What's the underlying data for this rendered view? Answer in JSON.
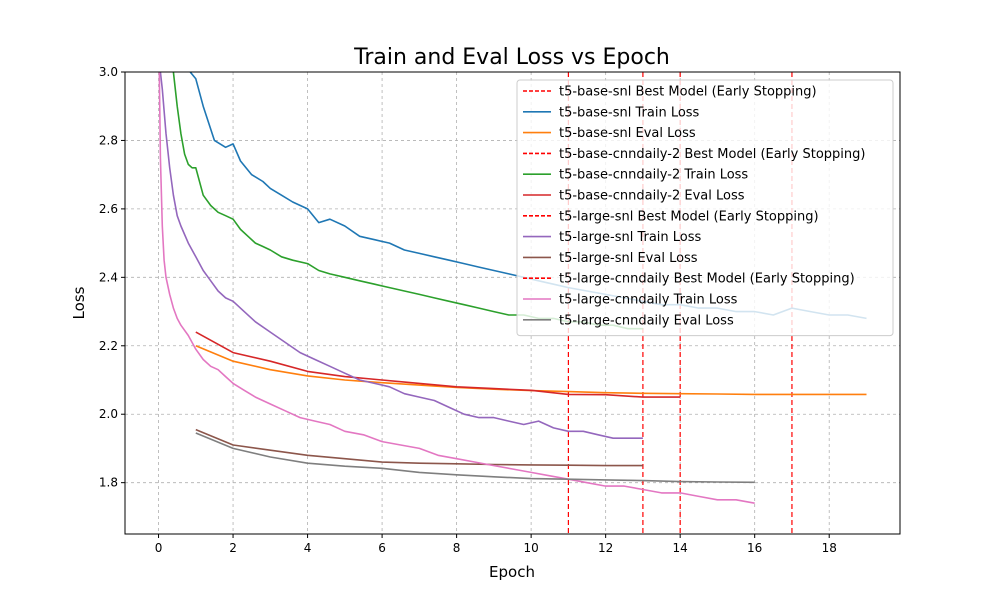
{
  "chart_data": {
    "type": "line",
    "title": "Train and Eval Loss vs Epoch",
    "xlabel": "Epoch",
    "ylabel": "Loss",
    "xlim": [
      -0.9,
      19.9
    ],
    "ylim": [
      1.65,
      3.0
    ],
    "xticks": [
      0,
      2,
      4,
      6,
      8,
      10,
      12,
      14,
      16,
      18
    ],
    "yticks": [
      1.8,
      2.0,
      2.2,
      2.4,
      2.6,
      2.8,
      3.0
    ],
    "grid": true,
    "legend_position": "upper right",
    "series": [
      {
        "name": "t5-base-snl Best Model (Early Stopping)",
        "kind": "vline",
        "color": "#ff0000",
        "x": 17
      },
      {
        "name": "t5-base-snl Train Loss",
        "kind": "line",
        "color": "#1f77b4",
        "x": [
          0.85,
          1,
          1.2,
          1.5,
          1.8,
          2.0,
          2.2,
          2.5,
          2.8,
          3.0,
          3.3,
          3.6,
          4.0,
          4.3,
          4.6,
          5.0,
          5.4,
          5.8,
          6.2,
          6.6,
          7.0,
          7.4,
          7.8,
          8.2,
          8.6,
          9.0,
          9.4,
          9.8,
          10.2,
          10.6,
          11.0,
          11.5,
          12.0,
          12.5,
          13.0,
          13.5,
          14.0,
          14.5,
          15.0,
          15.5,
          16.0,
          16.5,
          17.0,
          17.5,
          18.0,
          18.5,
          19.0
        ],
        "y": [
          3.02,
          2.98,
          2.9,
          2.8,
          2.78,
          2.79,
          2.74,
          2.7,
          2.68,
          2.66,
          2.64,
          2.62,
          2.6,
          2.56,
          2.57,
          2.55,
          2.52,
          2.51,
          2.5,
          2.48,
          2.47,
          2.46,
          2.45,
          2.44,
          2.43,
          2.42,
          2.41,
          2.4,
          2.39,
          2.38,
          2.37,
          2.36,
          2.35,
          2.34,
          2.33,
          2.32,
          2.32,
          2.31,
          2.31,
          2.3,
          2.3,
          2.29,
          2.31,
          2.3,
          2.29,
          2.29,
          2.28
        ]
      },
      {
        "name": "t5-base-snl Eval Loss",
        "kind": "line",
        "color": "#ff7f0e",
        "x": [
          1,
          2,
          3,
          4,
          5,
          6,
          7,
          8,
          9,
          10,
          11,
          12,
          13,
          14,
          15,
          16,
          17,
          18,
          19
        ],
        "y": [
          2.2,
          2.155,
          2.13,
          2.112,
          2.1,
          2.092,
          2.085,
          2.078,
          2.073,
          2.069,
          2.066,
          2.063,
          2.061,
          2.06,
          2.059,
          2.058,
          2.058,
          2.058,
          2.058
        ]
      },
      {
        "name": "t5-base-cnndaily-2 Best Model (Early Stopping)",
        "kind": "vline",
        "color": "#ff0000",
        "x": 13
      },
      {
        "name": "t5-base-cnndaily-2 Train Loss",
        "kind": "line",
        "color": "#2ca02c",
        "x": [
          0.4,
          0.5,
          0.6,
          0.7,
          0.8,
          0.9,
          1.0,
          1.2,
          1.4,
          1.6,
          1.8,
          2.0,
          2.2,
          2.4,
          2.6,
          2.8,
          3.0,
          3.3,
          3.6,
          4.0,
          4.3,
          4.6,
          5.0,
          5.4,
          5.8,
          6.2,
          6.6,
          7.0,
          7.4,
          7.8,
          8.2,
          8.6,
          9.0,
          9.4,
          9.8,
          10.2,
          10.6,
          11.0,
          11.4,
          11.8,
          12.2,
          12.6,
          13.0
        ],
        "y": [
          3.0,
          2.9,
          2.82,
          2.76,
          2.73,
          2.72,
          2.72,
          2.64,
          2.61,
          2.59,
          2.58,
          2.57,
          2.54,
          2.52,
          2.5,
          2.49,
          2.48,
          2.46,
          2.45,
          2.44,
          2.42,
          2.41,
          2.4,
          2.39,
          2.38,
          2.37,
          2.36,
          2.35,
          2.34,
          2.33,
          2.32,
          2.31,
          2.3,
          2.29,
          2.29,
          2.28,
          2.28,
          2.27,
          2.27,
          2.26,
          2.26,
          2.25,
          2.25
        ]
      },
      {
        "name": "t5-base-cnndaily-2 Eval Loss",
        "kind": "line",
        "color": "#d62728",
        "x": [
          1,
          2,
          3,
          4,
          5,
          6,
          7,
          8,
          9,
          10,
          11,
          12,
          13,
          14
        ],
        "y": [
          2.24,
          2.18,
          2.155,
          2.125,
          2.11,
          2.1,
          2.09,
          2.08,
          2.075,
          2.07,
          2.058,
          2.057,
          2.05,
          2.05
        ]
      },
      {
        "name": "t5-large-snl Best Model (Early Stopping)",
        "kind": "vline",
        "color": "#ff0000",
        "x": 14
      },
      {
        "name": "t5-large-snl Train Loss",
        "kind": "line",
        "color": "#9467bd",
        "x": [
          0.05,
          0.1,
          0.2,
          0.3,
          0.4,
          0.5,
          0.6,
          0.8,
          1.0,
          1.2,
          1.4,
          1.6,
          1.8,
          2.0,
          2.3,
          2.6,
          3.0,
          3.4,
          3.8,
          4.2,
          4.6,
          5.0,
          5.4,
          5.8,
          6.2,
          6.6,
          7.0,
          7.4,
          7.8,
          8.2,
          8.6,
          9.0,
          9.4,
          9.8,
          10.2,
          10.6,
          11.0,
          11.4,
          11.8,
          12.2,
          12.6,
          13.0
        ],
        "y": [
          3.0,
          2.95,
          2.82,
          2.72,
          2.64,
          2.58,
          2.55,
          2.5,
          2.46,
          2.42,
          2.39,
          2.36,
          2.34,
          2.33,
          2.3,
          2.27,
          2.24,
          2.21,
          2.18,
          2.16,
          2.14,
          2.12,
          2.1,
          2.09,
          2.08,
          2.06,
          2.05,
          2.04,
          2.02,
          2.0,
          1.99,
          1.99,
          1.98,
          1.97,
          1.98,
          1.96,
          1.95,
          1.95,
          1.94,
          1.93,
          1.93,
          1.93
        ]
      },
      {
        "name": "t5-large-snl Eval Loss",
        "kind": "line",
        "color": "#8c564b",
        "x": [
          1,
          2,
          3,
          4,
          5,
          6,
          7,
          8,
          9,
          10,
          11,
          12,
          13
        ],
        "y": [
          1.955,
          1.91,
          1.895,
          1.88,
          1.87,
          1.86,
          1.857,
          1.855,
          1.853,
          1.852,
          1.851,
          1.85,
          1.85
        ]
      },
      {
        "name": "t5-large-cnndaily Best Model (Early Stopping)",
        "kind": "vline",
        "color": "#ff0000",
        "x": 11
      },
      {
        "name": "t5-large-cnndaily Train Loss",
        "kind": "line",
        "color": "#e377c2",
        "x": [
          0.02,
          0.05,
          0.1,
          0.15,
          0.2,
          0.3,
          0.4,
          0.5,
          0.6,
          0.8,
          1.0,
          1.2,
          1.4,
          1.6,
          1.8,
          2.0,
          2.3,
          2.6,
          3.0,
          3.4,
          3.8,
          4.2,
          4.6,
          5.0,
          5.5,
          6.0,
          6.5,
          7.0,
          7.5,
          8.0,
          8.5,
          9.0,
          9.5,
          10.0,
          10.5,
          11.0,
          11.5,
          12.0,
          12.5,
          13.0,
          13.5,
          14.0,
          14.5,
          15.0,
          15.5,
          16.0
        ],
        "y": [
          3.0,
          2.75,
          2.55,
          2.45,
          2.4,
          2.35,
          2.31,
          2.28,
          2.26,
          2.23,
          2.19,
          2.16,
          2.14,
          2.13,
          2.11,
          2.09,
          2.07,
          2.05,
          2.03,
          2.01,
          1.99,
          1.98,
          1.97,
          1.95,
          1.94,
          1.92,
          1.91,
          1.9,
          1.88,
          1.87,
          1.86,
          1.85,
          1.84,
          1.83,
          1.82,
          1.81,
          1.8,
          1.79,
          1.79,
          1.78,
          1.77,
          1.77,
          1.76,
          1.75,
          1.75,
          1.74
        ]
      },
      {
        "name": "t5-large-cnndaily Eval Loss",
        "kind": "line",
        "color": "#7f7f7f",
        "x": [
          1,
          2,
          3,
          4,
          5,
          6,
          7,
          8,
          9,
          10,
          11,
          12,
          13,
          14,
          15,
          16
        ],
        "y": [
          1.945,
          1.9,
          1.875,
          1.857,
          1.848,
          1.842,
          1.83,
          1.823,
          1.817,
          1.812,
          1.81,
          1.808,
          1.806,
          1.803,
          1.802,
          1.801
        ]
      }
    ]
  }
}
